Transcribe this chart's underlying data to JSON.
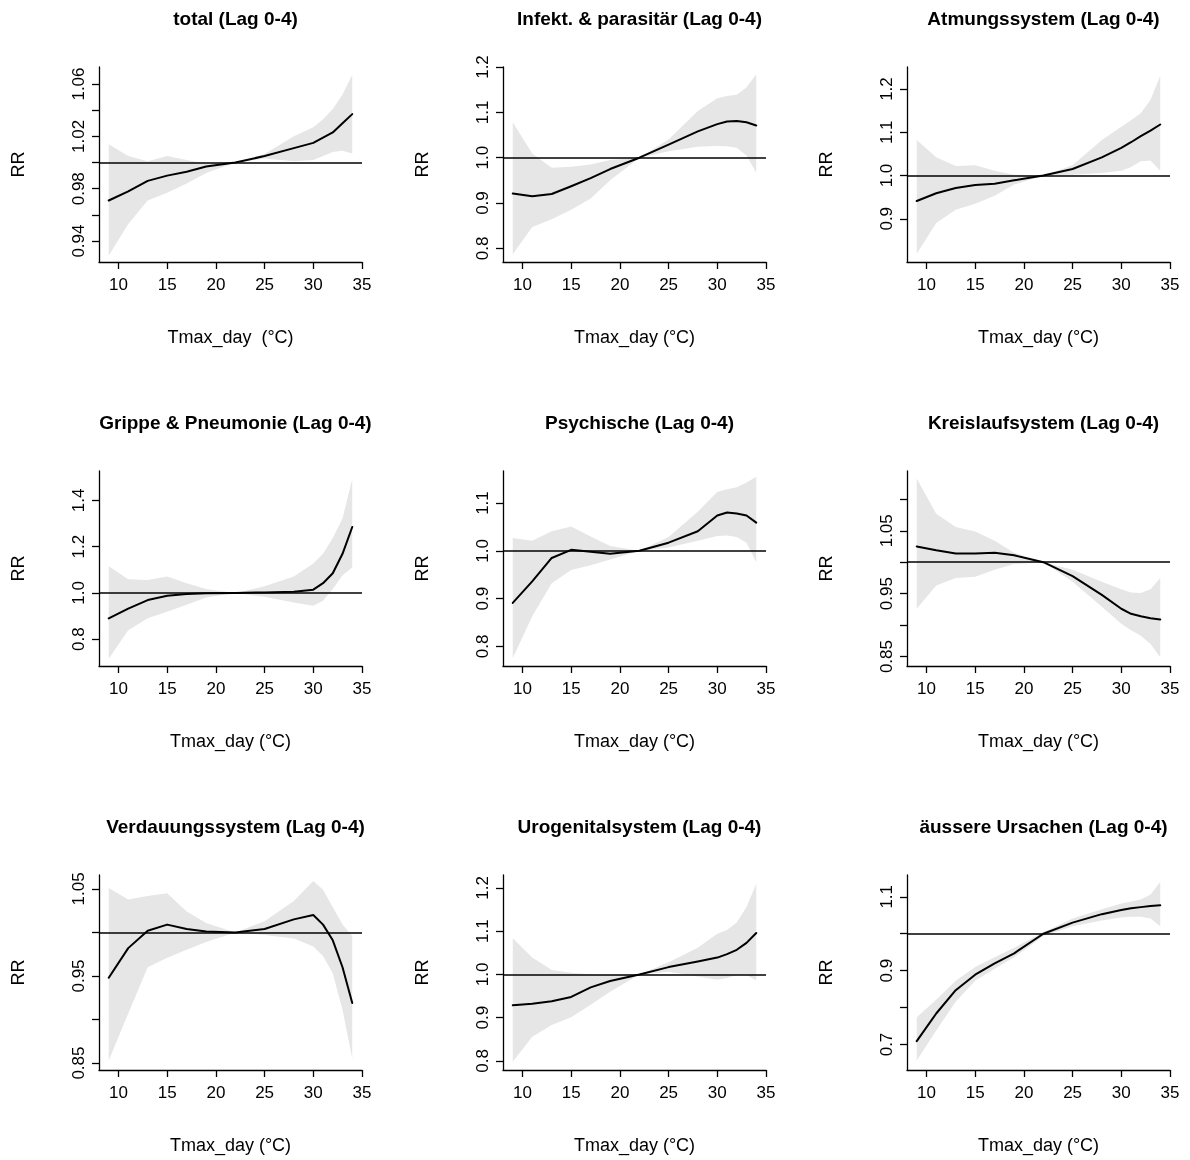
{
  "chart_data": [
    {
      "type": "line",
      "title": "total (Lag 0-4)",
      "xlabel": "Tmax_day  (°C)",
      "ylabel": "RR",
      "marker": "none",
      "line_style": "solid",
      "x": [
        9,
        11,
        13,
        15,
        17,
        19,
        22,
        25,
        28,
        30,
        31,
        32,
        33,
        34
      ],
      "xlim": [
        8,
        35
      ],
      "xticks": [
        10,
        15,
        20,
        25,
        30,
        35
      ],
      "ylim": [
        0.924,
        1.073
      ],
      "yticks": [
        0.94,
        {
          "value": 0.96,
          "label": null
        },
        0.98,
        {
          "value": 1,
          "label": null
        },
        1.02,
        {
          "value": 1.04,
          "label": null
        },
        1.06
      ],
      "ref_lines": [
        {
          "axis": "y",
          "value": 1,
          "color": "#000000"
        }
      ],
      "series": [
        {
          "color": "#000000",
          "values": [
            0.971,
            0.978,
            0.986,
            0.99,
            0.993,
            0.997,
            1.0,
            1.005,
            1.011,
            1.015,
            1.019,
            1.023,
            1.03,
            1.037
          ],
          "lower": [
            0.929,
            0.953,
            0.971,
            0.977,
            0.984,
            0.992,
            1.0,
            1.003,
            1.001,
            1.002,
            1.005,
            1.008,
            1.009,
            1.007
          ],
          "upper": [
            1.014,
            1.005,
            1.001,
            1.005,
            1.002,
            0.999,
            1.0,
            1.0065,
            1.02,
            1.027,
            1.033,
            1.041,
            1.052,
            1.067
          ]
        }
      ]
    },
    {
      "type": "line",
      "title": "Infekt. & parasitär (Lag 0-4)",
      "xlabel": "Tmax_day (°C)",
      "ylabel": "RR",
      "marker": "none",
      "line_style": "solid",
      "x": [
        9,
        11,
        13,
        15,
        17,
        19,
        22,
        25,
        28,
        30,
        31,
        32,
        33,
        34
      ],
      "xlim": [
        8,
        35
      ],
      "xticks": [
        10,
        15,
        20,
        25,
        30,
        35
      ],
      "ylim": [
        0.77,
        1.2
      ],
      "yticks": [
        0.8,
        0.9,
        {
          "value": 1,
          "label": "1.0"
        },
        1.1,
        1.2
      ],
      "ref_lines": [
        {
          "axis": "y",
          "value": 1,
          "color": "#000000"
        }
      ],
      "series": [
        {
          "color": "#000000",
          "values": [
            0.921,
            0.915,
            0.92,
            0.937,
            0.955,
            0.975,
            1.0,
            1.029,
            1.058,
            1.074,
            1.08,
            1.081,
            1.078,
            1.071
          ],
          "lower": [
            0.787,
            0.847,
            0.864,
            0.885,
            0.91,
            0.95,
            1.0,
            1.014,
            1.024,
            1.026,
            1.025,
            1.022,
            1.005,
            0.967
          ],
          "upper": [
            1.078,
            1.009,
            0.978,
            0.98,
            0.985,
            0.995,
            1.0,
            1.04,
            1.103,
            1.131,
            1.136,
            1.139,
            1.155,
            1.184
          ]
        }
      ]
    },
    {
      "type": "line",
      "title": "Atmungssystem (Lag 0-4)",
      "xlabel": "Tmax_day (°C)",
      "ylabel": "RR",
      "marker": "none",
      "line_style": "solid",
      "x": [
        9,
        11,
        13,
        15,
        17,
        19,
        22,
        25,
        28,
        30,
        31,
        32,
        33,
        34
      ],
      "xlim": [
        8,
        35
      ],
      "xticks": [
        10,
        15,
        20,
        25,
        30,
        35
      ],
      "ylim": [
        0.8,
        1.251
      ],
      "yticks": [
        0.9,
        {
          "value": 1,
          "label": "1.0"
        },
        1.1,
        1.2
      ],
      "ref_lines": [
        {
          "axis": "y",
          "value": 1,
          "color": "#000000"
        }
      ],
      "series": [
        {
          "color": "#000000",
          "values": [
            0.941,
            0.959,
            0.971,
            0.978,
            0.981,
            0.989,
            1.0,
            1.015,
            1.042,
            1.064,
            1.077,
            1.091,
            1.104,
            1.118
          ],
          "lower": [
            0.819,
            0.89,
            0.921,
            0.935,
            0.953,
            0.979,
            1.0,
            1.002,
            1.006,
            1.011,
            1.02,
            1.033,
            1.035,
            1.011
          ],
          "upper": [
            1.082,
            1.042,
            1.022,
            1.024,
            1.011,
            1.002,
            1.0,
            1.024,
            1.082,
            1.113,
            1.128,
            1.144,
            1.175,
            1.231
          ]
        }
      ]
    },
    {
      "type": "line",
      "title": "Grippe & Pneumonie (Lag 0-4)",
      "xlabel": "Tmax_day (°C)",
      "ylabel": "RR",
      "marker": "none",
      "line_style": "solid",
      "x": [
        9,
        11,
        13,
        15,
        17,
        19,
        22,
        25,
        28,
        30,
        31,
        32,
        33,
        34
      ],
      "xlim": [
        8,
        35
      ],
      "xticks": [
        10,
        15,
        20,
        25,
        30,
        35
      ],
      "ylim": [
        0.684,
        1.527
      ],
      "yticks": [
        0.8,
        {
          "value": 1,
          "label": "1.0"
        },
        1.2,
        1.4
      ],
      "ref_lines": [
        {
          "axis": "y",
          "value": 1,
          "color": "#000000"
        }
      ],
      "series": [
        {
          "color": "#000000",
          "values": [
            0.89,
            0.932,
            0.969,
            0.988,
            0.995,
            0.998,
            1.0,
            1.002,
            1.005,
            1.014,
            1.042,
            1.085,
            1.169,
            1.285
          ],
          "lower": [
            0.715,
            0.839,
            0.89,
            0.919,
            0.949,
            0.98,
            1.0,
            0.983,
            0.958,
            0.944,
            0.966,
            1.017,
            1.076,
            1.11
          ],
          "upper": [
            1.115,
            1.059,
            1.056,
            1.071,
            1.042,
            1.017,
            1.0,
            1.029,
            1.071,
            1.127,
            1.169,
            1.237,
            1.322,
            1.492
          ]
        }
      ]
    },
    {
      "type": "line",
      "title": "Psychische (Lag 0-4)",
      "xlabel": "Tmax_day (°C)",
      "ylabel": "RR",
      "marker": "none",
      "line_style": "solid",
      "x": [
        9,
        11,
        13,
        15,
        17,
        19,
        22,
        25,
        28,
        30,
        31,
        32,
        33,
        34
      ],
      "xlim": [
        8,
        35
      ],
      "xticks": [
        10,
        15,
        20,
        25,
        30,
        35
      ],
      "ylim": [
        0.759,
        1.167
      ],
      "yticks": [
        0.8,
        0.9,
        {
          "value": 1,
          "label": "1.0"
        },
        1.1
      ],
      "ref_lines": [
        {
          "axis": "y",
          "value": 1,
          "color": "#000000"
        }
      ],
      "series": [
        {
          "color": "#000000",
          "values": [
            0.891,
            0.936,
            0.985,
            1.002,
            0.998,
            0.994,
            1.0,
            1.017,
            1.041,
            1.074,
            1.08,
            1.078,
            1.074,
            1.059
          ],
          "lower": [
            0.775,
            0.863,
            0.932,
            0.96,
            0.97,
            0.982,
            1.0,
            1.007,
            1.021,
            1.031,
            1.032,
            1.029,
            1.017,
            0.976
          ],
          "upper": [
            1.027,
            1.021,
            1.041,
            1.051,
            1.03,
            1.01,
            1.0,
            1.029,
            1.082,
            1.123,
            1.129,
            1.133,
            1.143,
            1.155
          ]
        }
      ]
    },
    {
      "type": "line",
      "title": "Kreislaufsystem (Lag 0-4)",
      "xlabel": "Tmax_day (°C)",
      "ylabel": "RR",
      "marker": "none",
      "line_style": "solid",
      "x": [
        9,
        11,
        13,
        15,
        17,
        19,
        22,
        25,
        28,
        30,
        31,
        32,
        33,
        34
      ],
      "xlim": [
        8,
        35
      ],
      "xticks": [
        10,
        15,
        20,
        25,
        30,
        35
      ],
      "ylim": [
        0.835,
        1.145
      ],
      "yticks": [
        0.85,
        {
          "value": 0.9,
          "label": null
        },
        0.95,
        {
          "value": 1,
          "label": null
        },
        1.05,
        {
          "value": 1.1,
          "label": null
        }
      ],
      "ref_lines": [
        {
          "axis": "y",
          "value": 1,
          "color": "#000000"
        }
      ],
      "series": [
        {
          "color": "#000000",
          "values": [
            1.025,
            1.019,
            1.014,
            1.014,
            1.015,
            1.011,
            1.0,
            0.978,
            0.948,
            0.926,
            0.918,
            0.914,
            0.911,
            0.909
          ],
          "lower": [
            0.926,
            0.963,
            0.975,
            0.977,
            0.988,
            0.997,
            1.0,
            0.969,
            0.929,
            0.902,
            0.892,
            0.883,
            0.87,
            0.849
          ],
          "upper": [
            1.133,
            1.077,
            1.056,
            1.049,
            1.034,
            1.015,
            1.0,
            0.988,
            0.969,
            0.957,
            0.952,
            0.951,
            0.957,
            0.975
          ]
        }
      ]
    },
    {
      "type": "line",
      "title": "Verdauungssystem (Lag 0-4)",
      "xlabel": "Tmax_day (°C)",
      "ylabel": "RR",
      "marker": "none",
      "line_style": "solid",
      "x": [
        9,
        11,
        13,
        15,
        17,
        19,
        22,
        25,
        28,
        30,
        31,
        32,
        33,
        34
      ],
      "xlim": [
        8,
        35
      ],
      "xticks": [
        10,
        15,
        20,
        25,
        30,
        35
      ],
      "ylim": [
        0.842,
        1.066
      ],
      "yticks": [
        0.85,
        {
          "value": 0.9,
          "label": null
        },
        0.95,
        {
          "value": 1,
          "label": null
        },
        1.05
      ],
      "ref_lines": [
        {
          "axis": "y",
          "value": 1,
          "color": "#000000"
        }
      ],
      "series": [
        {
          "color": "#000000",
          "values": [
            0.948,
            0.982,
            1.002,
            1.009,
            1.004,
            1.001,
            1.0,
            1.004,
            1.015,
            1.02,
            1.009,
            0.991,
            0.96,
            0.919
          ],
          "lower": [
            0.853,
            0.907,
            0.96,
            0.971,
            0.98,
            0.989,
            1.0,
            0.997,
            0.993,
            0.984,
            0.973,
            0.953,
            0.911,
            0.855
          ],
          "upper": [
            1.051,
            1.038,
            1.042,
            1.045,
            1.024,
            1.011,
            1.0,
            1.013,
            1.036,
            1.059,
            1.049,
            1.029,
            1.009,
            0.996
          ]
        }
      ]
    },
    {
      "type": "line",
      "title": "Urogenitalsystem (Lag 0-4)",
      "xlabel": "Tmax_day (°C)",
      "ylabel": "RR",
      "marker": "none",
      "line_style": "solid",
      "x": [
        9,
        11,
        13,
        15,
        17,
        19,
        22,
        25,
        28,
        30,
        31,
        32,
        33,
        34
      ],
      "xlim": [
        8,
        35
      ],
      "xticks": [
        10,
        15,
        20,
        25,
        30,
        35
      ],
      "ylim": [
        0.779,
        1.23
      ],
      "yticks": [
        0.8,
        0.9,
        {
          "value": 1,
          "label": "1.0"
        },
        1.1,
        1.2
      ],
      "ref_lines": [
        {
          "axis": "y",
          "value": 1,
          "color": "#000000"
        }
      ],
      "series": [
        {
          "color": "#000000",
          "values": [
            0.929,
            0.932,
            0.938,
            0.948,
            0.97,
            0.985,
            1.0,
            1.017,
            1.03,
            1.039,
            1.047,
            1.057,
            1.073,
            1.096
          ],
          "lower": [
            0.798,
            0.856,
            0.883,
            0.901,
            0.93,
            0.96,
            1.0,
            1.006,
            0.995,
            0.988,
            0.992,
            0.999,
            0.999,
            0.986
          ],
          "upper": [
            1.084,
            1.039,
            1.01,
            1.004,
            1.0,
            1.0,
            1.0,
            1.028,
            1.062,
            1.094,
            1.103,
            1.12,
            1.156,
            1.21
          ]
        }
      ]
    },
    {
      "type": "line",
      "title": "äussere Ursachen (Lag 0-4)",
      "xlabel": "Tmax_day (°C)",
      "ylabel": "RR",
      "marker": "none",
      "line_style": "solid",
      "x": [
        9,
        11,
        13,
        15,
        17,
        19,
        22,
        25,
        28,
        30,
        31,
        32,
        33,
        34
      ],
      "xlim": [
        8,
        35
      ],
      "xticks": [
        10,
        15,
        20,
        25,
        30,
        35
      ],
      "ylim": [
        0.631,
        1.159
      ],
      "yticks": [
        0.7,
        {
          "value": 0.8,
          "label": null
        },
        0.9,
        {
          "value": 1,
          "label": null
        },
        1.1
      ],
      "ref_lines": [
        {
          "axis": "y",
          "value": 1,
          "color": "#000000"
        }
      ],
      "series": [
        {
          "color": "#000000",
          "values": [
            0.709,
            0.784,
            0.847,
            0.889,
            0.92,
            0.947,
            1.0,
            1.03,
            1.053,
            1.064,
            1.069,
            1.072,
            1.075,
            1.077
          ],
          "lower": [
            0.657,
            0.738,
            0.816,
            0.873,
            0.905,
            0.936,
            0.994,
            1.02,
            1.036,
            1.044,
            1.046,
            1.046,
            1.041,
            1.02
          ],
          "upper": [
            0.774,
            0.821,
            0.873,
            0.91,
            0.936,
            0.962,
            1.004,
            1.041,
            1.066,
            1.082,
            1.087,
            1.093,
            1.106,
            1.14
          ]
        }
      ]
    }
  ]
}
